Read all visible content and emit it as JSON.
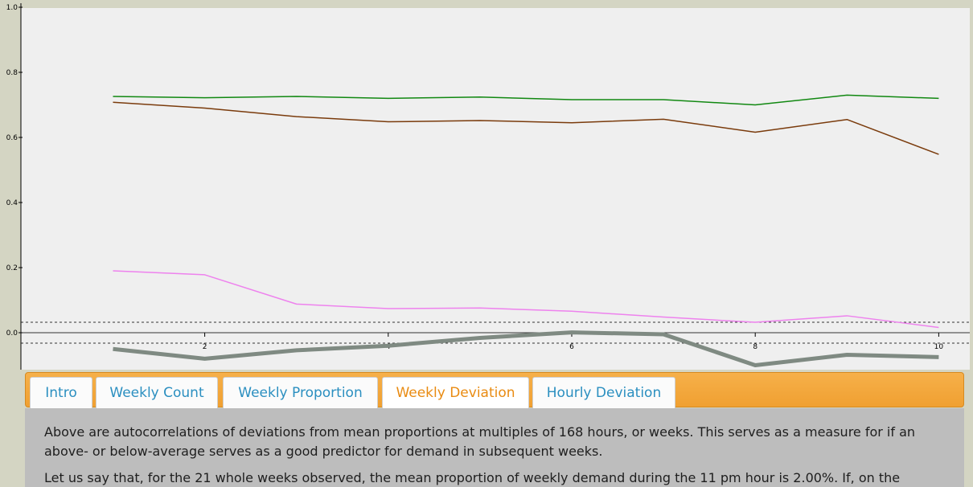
{
  "chart_data": {
    "type": "line",
    "x": [
      1,
      2,
      3,
      4,
      5,
      6,
      7,
      8,
      9,
      10
    ],
    "xticks": [
      2,
      4,
      6,
      8,
      10
    ],
    "yticks": [
      "0.0",
      "0.2",
      "0.4",
      "0.6",
      "0.8",
      "1.0"
    ],
    "xlim": [
      0.5,
      10.5
    ],
    "ylim": [
      0.0,
      1.0
    ],
    "confidence_band": 0.032,
    "series": [
      {
        "color": "#118811",
        "width": 1.5,
        "values": [
          0.726,
          0.722,
          0.726,
          0.72,
          0.724,
          0.716,
          0.716,
          0.7,
          0.73,
          0.72
        ]
      },
      {
        "color": "#7a3b0c",
        "width": 1.5,
        "values": [
          0.708,
          0.69,
          0.664,
          0.648,
          0.652,
          0.645,
          0.656,
          0.616,
          0.655,
          0.548
        ]
      },
      {
        "color": "#ee82ee",
        "width": 1.5,
        "values": [
          0.19,
          0.178,
          0.088,
          0.074,
          0.076,
          0.066,
          0.048,
          0.032,
          0.052,
          0.016
        ]
      },
      {
        "color": "#7f8a82",
        "width": 5,
        "values": [
          -0.05,
          -0.08,
          -0.054,
          -0.04,
          -0.016,
          0.001,
          -0.005,
          -0.1,
          -0.068,
          -0.075
        ]
      }
    ]
  },
  "tabs": [
    {
      "label": "Intro"
    },
    {
      "label": "Weekly Count"
    },
    {
      "label": "Weekly Proportion"
    },
    {
      "label": "Weekly Deviation"
    },
    {
      "label": "Hourly Deviation"
    }
  ],
  "active_tab": "Weekly Deviation",
  "content": {
    "p1": "Above are autocorrelations of deviations from mean proportions at multiples of 168 hours, or weeks. This serves as a measure for if an above- or below-average serves as a good predictor for demand in subsequent weeks.",
    "p2": "Let us say that, for the 21 whole weeks observed, the mean proportion of weekly demand during the 11 pm hour is 2.00%. If, on the"
  },
  "colors": {
    "accent": "#f0a031",
    "tab_text": "#2b8fc0",
    "tab_active_text": "#e98b12"
  }
}
